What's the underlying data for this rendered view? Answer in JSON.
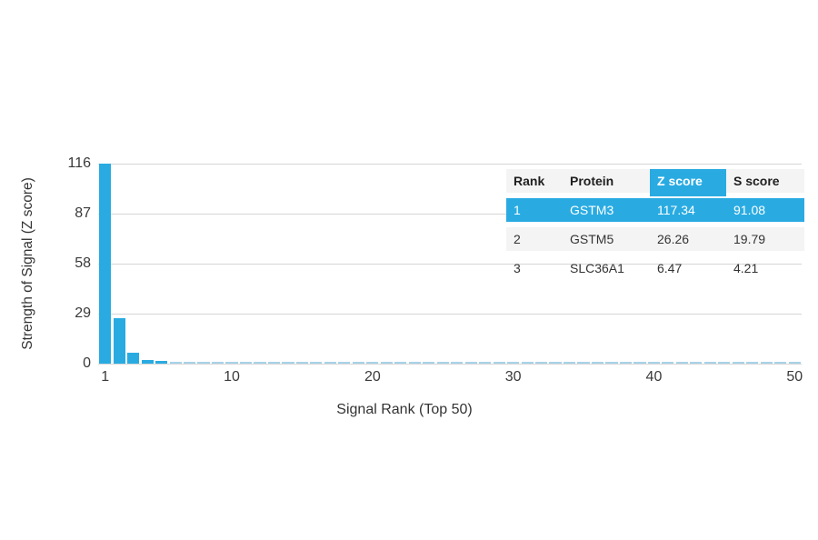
{
  "chart_data": {
    "type": "bar",
    "title": "",
    "xlabel": "Signal Rank (Top 50)",
    "ylabel": "Strength of Signal (Z score)",
    "x_ticks": [
      1,
      10,
      20,
      30,
      40,
      50
    ],
    "y_ticks": [
      0,
      29,
      58,
      87,
      116
    ],
    "xlim": [
      1,
      50
    ],
    "ylim": [
      0,
      116
    ],
    "grid": true,
    "legend": "none",
    "bar_color": "#29ABE2",
    "small_bar_color": "#A6D3E8",
    "gridline_color": "#D6D6D6",
    "values": [
      117.34,
      26.26,
      6.47,
      2.1,
      1.6,
      1.0,
      1.0,
      1.0,
      1.0,
      1.0,
      1.0,
      1.0,
      1.0,
      1.0,
      1.0,
      1.0,
      1.0,
      1.0,
      1.0,
      1.0,
      0.9,
      0.9,
      0.9,
      0.9,
      0.9,
      0.9,
      0.9,
      0.9,
      0.9,
      0.9,
      0.9,
      0.9,
      0.9,
      0.9,
      0.9,
      0.9,
      0.9,
      0.9,
      0.9,
      0.9,
      0.9,
      0.9,
      0.9,
      0.9,
      0.9,
      0.9,
      0.9,
      0.9,
      0.9,
      0.9
    ]
  },
  "table": {
    "headers": [
      "Rank",
      "Protein",
      "Z score",
      "S score"
    ],
    "highlighted_header": "Z score",
    "highlight_color": "#29ABE2",
    "header_bg": "#F4F4F4",
    "stripe_bg": "#F4F4F4",
    "rows": [
      {
        "rank": "1",
        "protein": "GSTM3",
        "z_score": "117.34",
        "s_score": "91.08",
        "highlighted": true
      },
      {
        "rank": "2",
        "protein": "GSTM5",
        "z_score": "26.26",
        "s_score": "19.79",
        "highlighted": false
      },
      {
        "rank": "3",
        "protein": "SLC36A1",
        "z_score": "6.47",
        "s_score": "4.21",
        "highlighted": false
      }
    ]
  }
}
